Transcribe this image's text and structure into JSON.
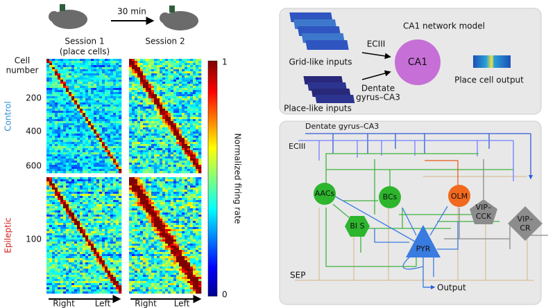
{
  "figure": {
    "left": {
      "delay": "30 min",
      "session1": "Session  1",
      "session1_note": "(place cells)",
      "session2": "Session  2",
      "y_label": [
        "Cell",
        "number"
      ],
      "control_ticks": [
        "200",
        "400",
        "600"
      ],
      "epileptic_ticks": [
        "100"
      ],
      "control": "Control",
      "epileptic": "Epileptic",
      "directions": [
        "Right",
        "Left",
        "Right",
        "Left"
      ],
      "colorbar_label": "Normalized firing rate",
      "colorbar_max": "1",
      "colorbar_min": "0"
    },
    "model": {
      "title": "CA1 network model",
      "ecIII": "ECIII",
      "grid_inputs": "Grid-like inputs",
      "dentate": [
        "Dentate",
        "gyrus–CA3"
      ],
      "place_inputs": "Place-like inputs",
      "ca1": "CA1",
      "output": "Place cell output"
    },
    "network": {
      "dentate": "Dentate gyrus–CA3",
      "ecIII": "ECIII",
      "aacs": "AACs",
      "bcs": "BCs",
      "olm": "OLM",
      "vip_cck": [
        "VIP–",
        "CCK"
      ],
      "vip_cr": [
        "VIP–",
        "CR"
      ],
      "bis": "BI S",
      "pyr": "PYR",
      "sep": "SEP",
      "output": "Output"
    }
  }
}
